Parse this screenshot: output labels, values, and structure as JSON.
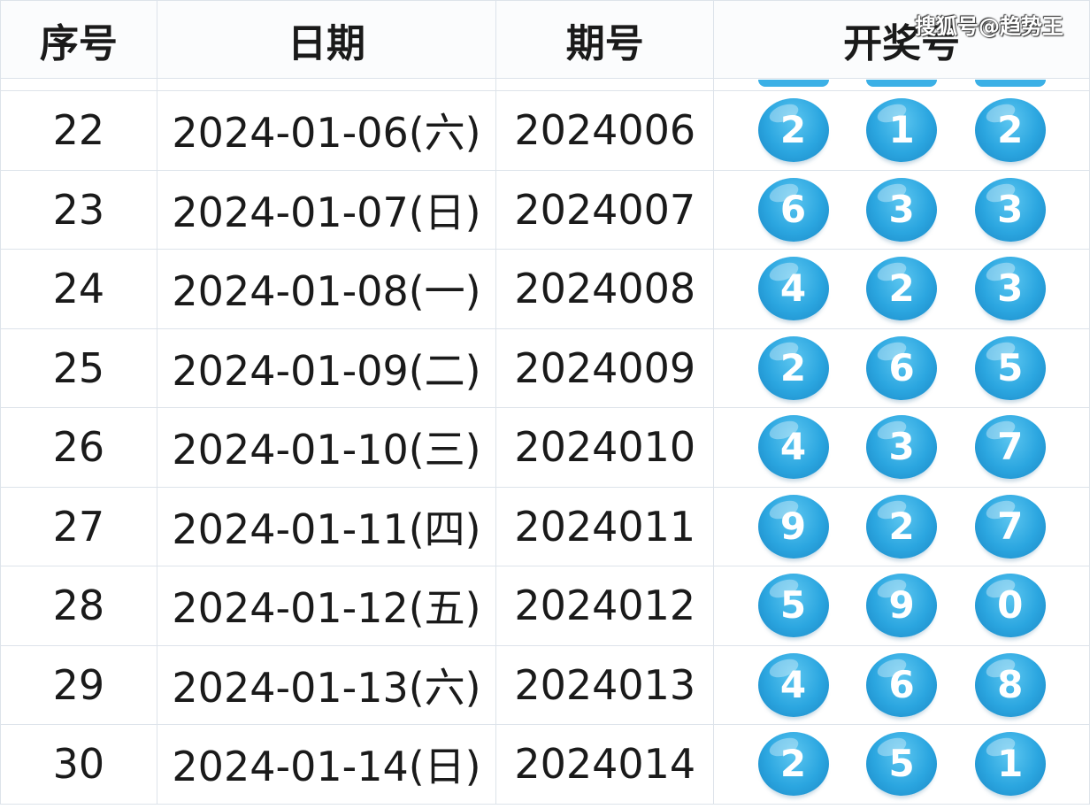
{
  "headers": [
    "序号",
    "日期",
    "期号",
    "开奖号"
  ],
  "watermark": "搜狐号@趋势王",
  "ball_color": "#2ba6e0",
  "rows": [
    {
      "seq": "22",
      "date": "2024-01-06(六)",
      "issue": "2024006",
      "nums": [
        "2",
        "1",
        "2"
      ]
    },
    {
      "seq": "23",
      "date": "2024-01-07(日)",
      "issue": "2024007",
      "nums": [
        "6",
        "3",
        "3"
      ]
    },
    {
      "seq": "24",
      "date": "2024-01-08(一)",
      "issue": "2024008",
      "nums": [
        "4",
        "2",
        "3"
      ]
    },
    {
      "seq": "25",
      "date": "2024-01-09(二)",
      "issue": "2024009",
      "nums": [
        "2",
        "6",
        "5"
      ]
    },
    {
      "seq": "26",
      "date": "2024-01-10(三)",
      "issue": "2024010",
      "nums": [
        "4",
        "3",
        "7"
      ]
    },
    {
      "seq": "27",
      "date": "2024-01-11(四)",
      "issue": "2024011",
      "nums": [
        "9",
        "2",
        "7"
      ]
    },
    {
      "seq": "28",
      "date": "2024-01-12(五)",
      "issue": "2024012",
      "nums": [
        "5",
        "9",
        "0"
      ]
    },
    {
      "seq": "29",
      "date": "2024-01-13(六)",
      "issue": "2024013",
      "nums": [
        "4",
        "6",
        "8"
      ]
    },
    {
      "seq": "30",
      "date": "2024-01-14(日)",
      "issue": "2024014",
      "nums": [
        "2",
        "5",
        "1"
      ]
    }
  ]
}
